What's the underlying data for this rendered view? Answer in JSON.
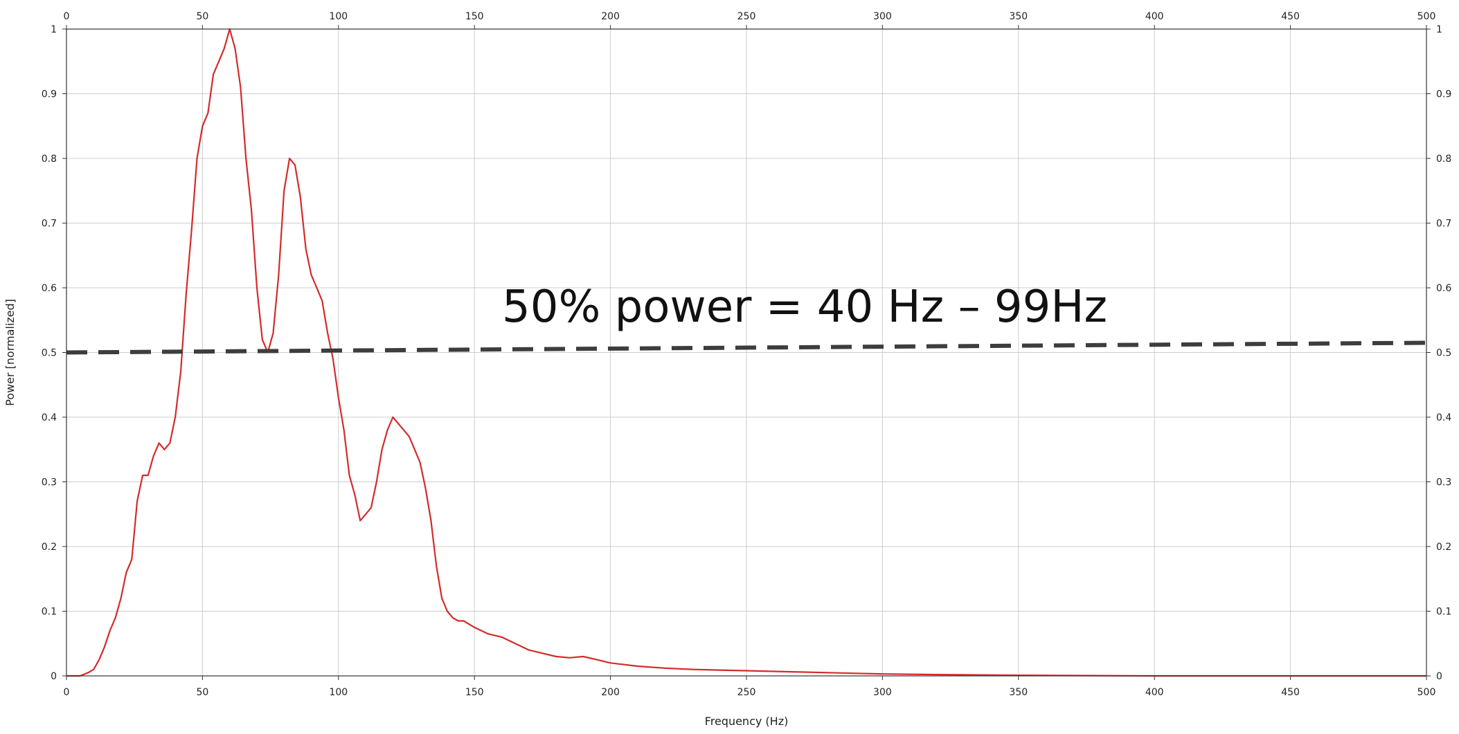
{
  "chart_data": {
    "type": "line",
    "title": "",
    "xlabel": "Frequency (Hz)",
    "ylabel": "Power [normalized]",
    "xlim": [
      0,
      500
    ],
    "ylim": [
      0,
      1
    ],
    "x_ticks": [
      "0",
      "50",
      "100",
      "150",
      "200",
      "250",
      "300",
      "350",
      "400",
      "450",
      "500"
    ],
    "y_ticks": [
      "0",
      "0.1",
      "0.2",
      "0.3",
      "0.4",
      "0.5",
      "0.6",
      "0.7",
      "0.8",
      "0.9",
      "1"
    ],
    "grid": true,
    "annotation": "50% power = 40 Hz – 99Hz",
    "series": [
      {
        "color": "#d42a2a",
        "x": [
          0,
          5,
          8,
          10,
          12,
          14,
          16,
          18,
          20,
          22,
          24,
          26,
          28,
          30,
          32,
          34,
          36,
          38,
          40,
          42,
          44,
          46,
          48,
          50,
          52,
          54,
          56,
          58,
          60,
          62,
          64,
          66,
          68,
          70,
          72,
          74,
          76,
          78,
          80,
          82,
          84,
          86,
          88,
          90,
          92,
          94,
          96,
          98,
          100,
          102,
          104,
          106,
          108,
          110,
          112,
          114,
          116,
          118,
          120,
          122,
          124,
          126,
          128,
          130,
          132,
          134,
          136,
          138,
          140,
          142,
          144,
          146,
          148,
          150,
          155,
          160,
          165,
          170,
          175,
          180,
          185,
          190,
          195,
          200,
          210,
          220,
          230,
          240,
          250,
          260,
          270,
          280,
          290,
          300,
          320,
          350,
          400,
          450,
          500
        ],
        "y": [
          0,
          0,
          0.005,
          0.01,
          0.025,
          0.045,
          0.07,
          0.09,
          0.12,
          0.16,
          0.18,
          0.27,
          0.31,
          0.31,
          0.34,
          0.36,
          0.35,
          0.36,
          0.4,
          0.47,
          0.59,
          0.69,
          0.8,
          0.85,
          0.87,
          0.93,
          0.95,
          0.97,
          1.0,
          0.97,
          0.91,
          0.8,
          0.72,
          0.6,
          0.52,
          0.5,
          0.53,
          0.62,
          0.75,
          0.8,
          0.79,
          0.74,
          0.66,
          0.62,
          0.6,
          0.58,
          0.53,
          0.49,
          0.43,
          0.38,
          0.31,
          0.28,
          0.24,
          0.25,
          0.26,
          0.3,
          0.35,
          0.38,
          0.4,
          0.39,
          0.38,
          0.37,
          0.35,
          0.33,
          0.29,
          0.24,
          0.17,
          0.12,
          0.1,
          0.09,
          0.085,
          0.085,
          0.08,
          0.075,
          0.065,
          0.06,
          0.05,
          0.04,
          0.035,
          0.03,
          0.028,
          0.03,
          0.025,
          0.02,
          0.015,
          0.012,
          0.01,
          0.009,
          0.008,
          0.007,
          0.006,
          0.005,
          0.004,
          0.003,
          0.002,
          0.001,
          0,
          0,
          0
        ]
      },
      {
        "color": "#3d3d3d",
        "x": [
          0,
          500
        ],
        "y": [
          0.5,
          0.515
        ]
      }
    ]
  }
}
